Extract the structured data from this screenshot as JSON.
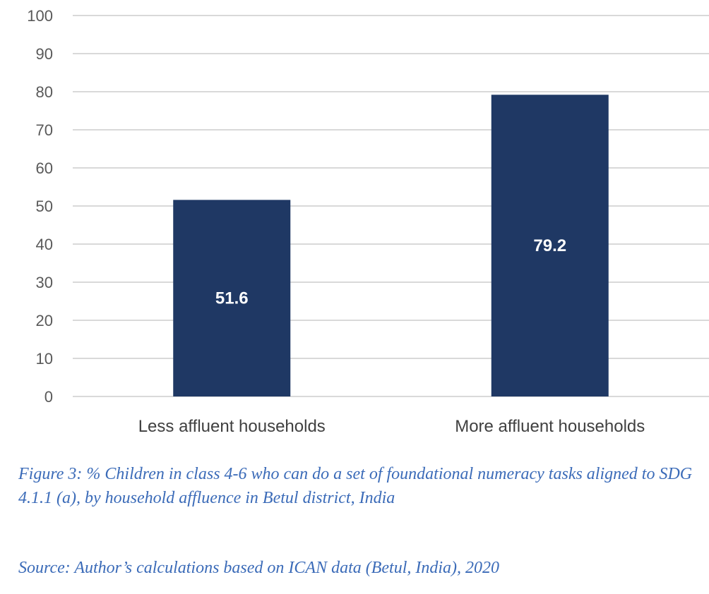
{
  "chart_data": {
    "type": "bar",
    "categories": [
      "Less affluent households",
      "More affluent households"
    ],
    "values": [
      51.6,
      79.2
    ],
    "data_labels": [
      "51.6",
      "79.2"
    ],
    "title": "",
    "xlabel": "",
    "ylabel": "",
    "ylim": [
      0,
      100
    ],
    "yticks": [
      0,
      10,
      20,
      30,
      40,
      50,
      60,
      70,
      80,
      90,
      100
    ],
    "grid": true,
    "legend": "none",
    "colors": {
      "bar": "#1f3864",
      "grid": "#d9d9d9",
      "label": "#ffffff"
    }
  },
  "captions": {
    "figure": "Figure 3: % Children in class 4-6 who can do a set of foundational numeracy tasks aligned to SDG 4.1.1 (a), by household affluence in Betul district, India",
    "source": "Source: Author’s calculations based on ICAN data (Betul, India), 2020"
  }
}
